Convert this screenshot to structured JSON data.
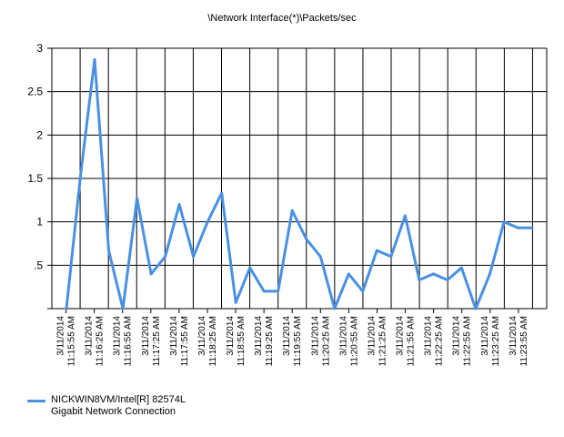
{
  "chart_data": {
    "type": "line",
    "title": "\\Network Interface(*)\\Packets/sec",
    "ylim": [
      0,
      3
    ],
    "yticks": [
      {
        "value": 0.5,
        "label": ".5"
      },
      {
        "value": 1,
        "label": "1"
      },
      {
        "value": 1.5,
        "label": "1.5"
      },
      {
        "value": 2,
        "label": "2"
      },
      {
        "value": 2.5,
        "label": "2.5"
      },
      {
        "value": 3,
        "label": "3"
      }
    ],
    "grid": true,
    "legend_position": "bottom-left",
    "x_labels": [
      [
        "3/11/2014",
        "11:15:55 AM"
      ],
      [
        "3/11/2014",
        "11:16:25 AM"
      ],
      [
        "3/11/2014",
        "11:16:55 AM"
      ],
      [
        "3/11/2014",
        "11:17:25 AM"
      ],
      [
        "3/11/2014",
        "11:17:55 AM"
      ],
      [
        "3/11/2014",
        "11:18:25 AM"
      ],
      [
        "3/11/2014",
        "11:18:55 AM"
      ],
      [
        "3/11/2014",
        "11:19:25 AM"
      ],
      [
        "3/11/2014",
        "11:19:55 AM"
      ],
      [
        "3/11/2014",
        "11:20:25 AM"
      ],
      [
        "3/11/2014",
        "11:20:55 AM"
      ],
      [
        "3/11/2014",
        "11:21:25 AM"
      ],
      [
        "3/11/2014",
        "11:21:55 AM"
      ],
      [
        "3/11/2014",
        "11:22:25 AM"
      ],
      [
        "3/11/2014",
        "11:22:55 AM"
      ],
      [
        "3/11/2014",
        "11:23:25 AM"
      ],
      [
        "3/11/2014",
        "11:23:55 AM"
      ]
    ],
    "series": [
      {
        "name": "NICKWIN8VM/Intel[R] 82574L\nGigabit Network Connection",
        "color": "#4A90E2",
        "values": [
          0,
          1.53,
          2.87,
          0.67,
          0,
          1.27,
          0.4,
          0.6,
          1.2,
          0.6,
          1.0,
          1.33,
          0.07,
          0.47,
          0.2,
          0.2,
          1.13,
          0.8,
          0.6,
          0,
          0.4,
          0.2,
          0.67,
          0.6,
          1.07,
          0.33,
          0.4,
          0.33,
          0.47,
          0,
          0.4,
          1.0,
          0.93,
          0.93
        ]
      }
    ]
  }
}
